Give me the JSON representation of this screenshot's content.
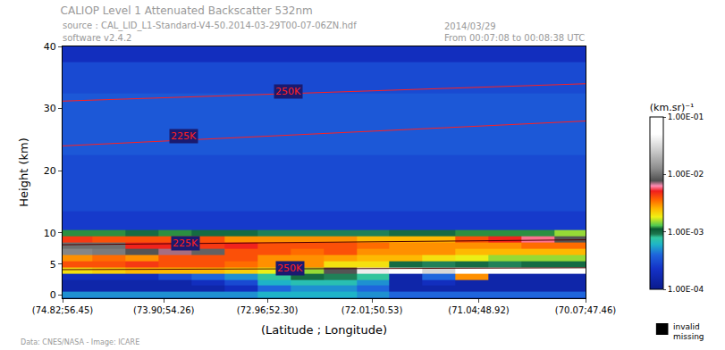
{
  "chart_data": {
    "type": "heatmap",
    "title": "CALIOP Level 1 Attenuated Backscatter 532nm",
    "source": "source : CAL_LID_L1-Standard-V4-50.2014-03-29T00-07-06ZN.hdf",
    "software": "software v2.4.2",
    "date": "2014/03/29",
    "time_span": "From 00:07:08 to 00:08:38 UTC",
    "footer": "Data: CNES/NASA - Image: ICARE",
    "missing_label": [
      "invalid",
      "missing"
    ],
    "x_label": "(Latitude ; Longitude)",
    "y_label": "Height (km)",
    "xlim": [
      74.82,
      70.07
    ],
    "xticks": [
      {
        "value": 74.82,
        "label": "(74.82;56.45)"
      },
      {
        "value": 73.9,
        "label": "(73.90;54.26)"
      },
      {
        "value": 72.96,
        "label": "(72.96;52.30)"
      },
      {
        "value": 72.01,
        "label": "(72.01;50.53)"
      },
      {
        "value": 71.04,
        "label": "(71.04;48.92)"
      },
      {
        "value": 70.07,
        "label": "(70.07;47.46)"
      }
    ],
    "ylim": [
      -0.5,
      40
    ],
    "yticks": [
      0,
      5,
      10,
      20,
      30,
      40
    ],
    "grid": false,
    "x": [
      74.7,
      74.4,
      74.1,
      73.8,
      73.5,
      73.2,
      72.9,
      72.6,
      72.3,
      72.0,
      71.7,
      71.4,
      71.1,
      70.8,
      70.5,
      70.2
    ],
    "y": [
      0,
      1,
      2,
      3,
      4,
      5,
      6,
      7,
      8,
      9,
      10,
      11,
      12,
      15,
      20,
      25,
      30,
      35,
      40
    ],
    "cells": [
      [
        0.0005,
        0.0005,
        0.0005,
        0.0005,
        0.0005,
        0.0005,
        0.0006,
        0.0006,
        0.0006,
        0.0005,
        0.0004,
        0.0004,
        0.0004,
        0.0004,
        0.0004,
        0.0004
      ],
      [
        0.00015,
        0.00015,
        0.00015,
        0.00015,
        0.00015,
        0.0002,
        0.0004,
        0.0005,
        0.0005,
        0.0004,
        0.00015,
        0.00015,
        0.00015,
        0.00015,
        0.00015,
        0.00015
      ],
      [
        0.00015,
        0.00015,
        0.00015,
        0.00015,
        0.0002,
        0.0003,
        0.0006,
        0.0007,
        0.0007,
        0.0005,
        0.00015,
        0.0002,
        0.00015,
        0.00015,
        0.00015,
        0.00015
      ],
      [
        0.0002,
        0.0002,
        0.0002,
        0.0003,
        0.0004,
        0.0005,
        0.0008,
        0.001,
        0.0009,
        0.0008,
        0.00015,
        0.0004,
        0.003,
        0.00015,
        0.00015,
        0.00015
      ],
      [
        0.002,
        0.0022,
        0.0025,
        0.0025,
        0.0025,
        0.0022,
        0.0018,
        0.0015,
        0.008,
        0.04,
        0.05,
        0.03,
        0.06,
        0.05,
        0.06,
        0.05
      ],
      [
        0.004,
        0.004,
        0.0045,
        0.004,
        0.004,
        0.0035,
        0.003,
        0.003,
        0.002,
        0.002,
        0.001,
        0.0009,
        0.001,
        0.0009,
        0.001,
        0.001
      ],
      [
        0.003,
        0.0035,
        0.003,
        0.004,
        0.004,
        0.004,
        0.003,
        0.003,
        0.0028,
        0.0025,
        0.0025,
        0.002,
        0.0018,
        0.0015,
        0.0015,
        0.0015
      ],
      [
        0.012,
        0.011,
        0.008,
        0.007,
        0.009,
        0.004,
        0.004,
        0.0035,
        0.004,
        0.003,
        0.003,
        0.003,
        0.0025,
        0.0025,
        0.0025,
        0.0025
      ],
      [
        0.01,
        0.01,
        0.005,
        0.005,
        0.0045,
        0.005,
        0.004,
        0.004,
        0.004,
        0.0035,
        0.003,
        0.003,
        0.003,
        0.003,
        0.0035,
        0.0035
      ],
      [
        0.0045,
        0.004,
        0.004,
        0.004,
        0.004,
        0.003,
        0.003,
        0.003,
        0.003,
        0.0025,
        0.0025,
        0.0025,
        0.004,
        0.005,
        0.006,
        0.008
      ],
      [
        0.0012,
        0.0012,
        0.001,
        0.0012,
        0.001,
        0.001,
        0.0009,
        0.0009,
        0.0009,
        0.0009,
        0.001,
        0.001,
        0.0012,
        0.0012,
        0.0012,
        0.0015
      ],
      [
        0.00025,
        0.00025,
        0.00025,
        0.00025,
        0.00025,
        0.00025,
        0.00025,
        0.00025,
        0.00025,
        0.00025,
        0.00025,
        0.00025,
        0.00025,
        0.00025,
        0.00025,
        0.00025
      ],
      [
        0.00025,
        0.00025,
        0.00025,
        0.00025,
        0.00025,
        0.00025,
        0.00025,
        0.00025,
        0.00025,
        0.00025,
        0.00025,
        0.00025,
        0.00025,
        0.00025,
        0.00025,
        0.00025
      ],
      [
        0.0003,
        0.0003,
        0.0003,
        0.0003,
        0.0003,
        0.0003,
        0.0003,
        0.0003,
        0.0003,
        0.0003,
        0.0003,
        0.0003,
        0.0003,
        0.0003,
        0.0003,
        0.0003
      ],
      [
        0.0003,
        0.0003,
        0.0003,
        0.0003,
        0.0003,
        0.0003,
        0.0003,
        0.0003,
        0.0003,
        0.0003,
        0.0003,
        0.0003,
        0.0003,
        0.0003,
        0.0003,
        0.0003
      ],
      [
        0.00035,
        0.00035,
        0.00035,
        0.00035,
        0.00035,
        0.00035,
        0.00035,
        0.00035,
        0.00035,
        0.00035,
        0.00035,
        0.00035,
        0.00035,
        0.00035,
        0.00035,
        0.00035
      ],
      [
        0.00035,
        0.00035,
        0.00035,
        0.00035,
        0.00035,
        0.00035,
        0.00035,
        0.00035,
        0.00035,
        0.00035,
        0.00035,
        0.00035,
        0.00035,
        0.00035,
        0.00035,
        0.00035
      ],
      [
        0.0003,
        0.0003,
        0.0003,
        0.0003,
        0.0003,
        0.0003,
        0.0003,
        0.0003,
        0.0003,
        0.0003,
        0.0003,
        0.0003,
        0.0003,
        0.0003,
        0.0003,
        0.0003
      ],
      [
        0.0002,
        0.0002,
        0.0002,
        0.0002,
        0.0002,
        0.0002,
        0.0002,
        0.0002,
        0.0002,
        0.0002,
        0.0002,
        0.0002,
        0.0002,
        0.0002,
        0.0002,
        0.0002
      ]
    ],
    "colorbar_title": "(km.sr)⁻¹",
    "colorbar_range": [
      0.0001,
      0.1
    ],
    "colorbar_ticks": [
      {
        "value": 0.0001,
        "label": "1.00E-04"
      },
      {
        "value": 0.001,
        "label": "1.00E-03"
      },
      {
        "value": 0.01,
        "label": "1.00E-02"
      },
      {
        "value": 0.1,
        "label": "1.00E-01"
      }
    ],
    "isotherms": [
      {
        "x": [
          74.82,
          70.07
        ],
        "y": [
          31.2,
          34.0
        ],
        "color": "#ff2020"
      },
      {
        "x": [
          74.82,
          70.07
        ],
        "y": [
          24.0,
          28.0
        ],
        "color": "#ff2020"
      },
      {
        "x": [
          74.82,
          70.07
        ],
        "y": [
          8.1,
          8.9
        ],
        "color": "#500000"
      },
      {
        "x": [
          74.82,
          70.07
        ],
        "y": [
          4.1,
          4.4
        ],
        "color": "#500000"
      }
    ],
    "annotations": [
      {
        "text": "250K",
        "x": 72.77,
        "y": 32.8
      },
      {
        "text": "225K",
        "x": 73.72,
        "y": 25.5
      },
      {
        "text": "225K",
        "x": 73.7,
        "y": 8.4
      },
      {
        "text": "250K",
        "x": 72.75,
        "y": 4.3
      }
    ]
  }
}
